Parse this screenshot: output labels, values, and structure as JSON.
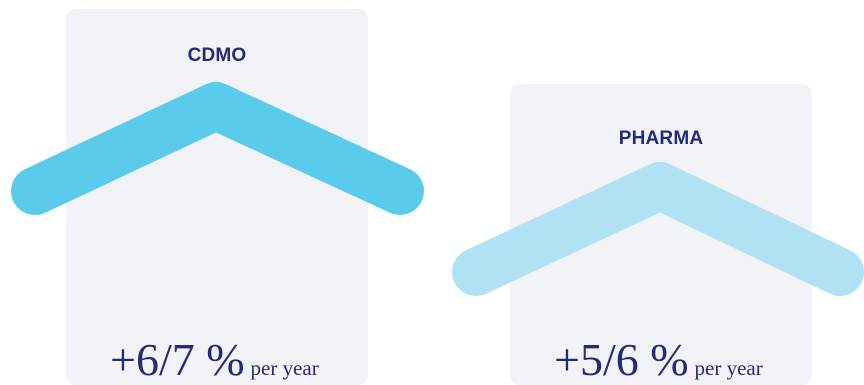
{
  "cards": [
    {
      "id": "cdmo",
      "label": "CDMO",
      "rate": "+6/7 %",
      "unit": "per year",
      "arrow_color": "#5bcbec"
    },
    {
      "id": "pharma",
      "label": "PHARMA",
      "rate": "+5/6 %",
      "unit": "per year",
      "arrow_color": "#b1e2f3"
    }
  ],
  "colors": {
    "card_bg": "#f2f3f6",
    "text": "#24297a"
  },
  "icons": [
    "chevron-up-icon",
    "chevron-up-icon"
  ]
}
